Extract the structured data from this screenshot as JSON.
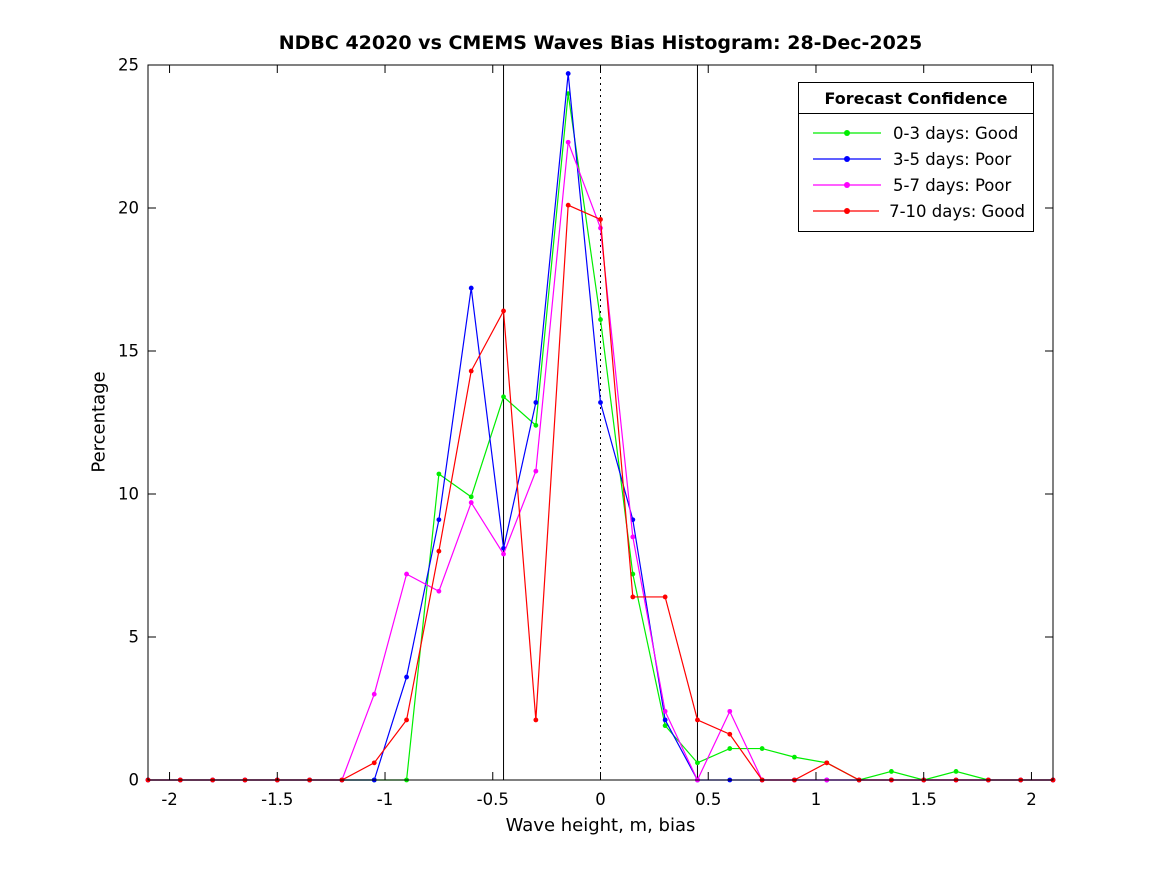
{
  "title": "NDBC 42020 vs CMEMS Waves Bias Histogram: 28-Dec-2025",
  "xlabel": "Wave height, m, bias",
  "ylabel": "Percentage",
  "legend": {
    "title": "Forecast Confidence",
    "entries": [
      {
        "label": "0-3 days: Good",
        "color": "#00EE00"
      },
      {
        "label": "3-5 days: Poor",
        "color": "#0000FF"
      },
      {
        "label": "5-7 days: Poor",
        "color": "#FF00FF"
      },
      {
        "label": "7-10 days: Good",
        "color": "#FF0000"
      }
    ]
  },
  "chart_data": {
    "type": "line",
    "title": "NDBC 42020 vs CMEMS Waves Bias Histogram: 28-Dec-2025",
    "xlabel": "Wave height, m, bias",
    "ylabel": "Percentage",
    "xlim": [
      -2.1,
      2.1
    ],
    "ylim": [
      0,
      25
    ],
    "grid": false,
    "legend_position": "top-right",
    "legend_title": "Forecast Confidence",
    "xticks": [
      -2,
      -1.5,
      -1,
      -0.5,
      0,
      0.5,
      1,
      1.5,
      2
    ],
    "xtick_labels": [
      "-2",
      "-1.5",
      "-1",
      "-0.5",
      "0",
      "0.5",
      "1",
      "1.5",
      "2"
    ],
    "yticks": [
      0,
      5,
      10,
      15,
      20,
      25
    ],
    "ytick_labels": [
      "0",
      "5",
      "10",
      "15",
      "20",
      "25"
    ],
    "ref_lines": [
      {
        "x": -0.45,
        "style": "solid"
      },
      {
        "x": 0,
        "style": "dotted"
      },
      {
        "x": 0.45,
        "style": "solid"
      }
    ],
    "x": [
      -2.1,
      -1.95,
      -1.8,
      -1.65,
      -1.5,
      -1.35,
      -1.2,
      -1.05,
      -0.9,
      -0.75,
      -0.6,
      -0.45,
      -0.3,
      -0.15,
      0,
      0.15,
      0.3,
      0.45,
      0.6,
      0.75,
      0.9,
      1.05,
      1.2,
      1.35,
      1.5,
      1.65,
      1.8,
      1.95,
      2.1
    ],
    "series": [
      {
        "name": "0-3 days: Good",
        "color": "#00EE00",
        "values": [
          0,
          0,
          0,
          0,
          0,
          0,
          0,
          0,
          0,
          10.7,
          9.9,
          13.4,
          12.4,
          24.0,
          16.1,
          7.2,
          1.9,
          0.6,
          1.1,
          1.1,
          0.8,
          0.6,
          0,
          0.3,
          0,
          0.3,
          0,
          0,
          0
        ]
      },
      {
        "name": "3-5 days: Poor",
        "color": "#0000FF",
        "values": [
          0,
          0,
          0,
          0,
          0,
          0,
          0,
          0,
          3.6,
          9.1,
          17.2,
          8.1,
          13.2,
          24.7,
          13.2,
          9.1,
          2.1,
          0,
          0,
          0,
          0,
          0,
          0,
          0,
          0,
          0,
          0,
          0,
          0
        ]
      },
      {
        "name": "5-7 days: Poor",
        "color": "#FF00FF",
        "values": [
          0,
          0,
          0,
          0,
          0,
          0,
          0,
          3.0,
          7.2,
          6.6,
          9.7,
          7.9,
          10.8,
          22.3,
          19.3,
          8.5,
          2.4,
          0,
          2.4,
          0,
          0,
          0,
          0,
          0,
          0,
          0,
          0,
          0,
          0
        ]
      },
      {
        "name": "7-10 days: Good",
        "color": "#FF0000",
        "values": [
          0,
          0,
          0,
          0,
          0,
          0,
          0,
          0.6,
          2.1,
          8.0,
          14.3,
          16.4,
          2.1,
          20.1,
          19.6,
          6.4,
          6.4,
          2.1,
          1.6,
          0,
          0,
          0.6,
          0,
          0,
          0,
          0,
          0,
          0,
          0
        ]
      }
    ]
  }
}
